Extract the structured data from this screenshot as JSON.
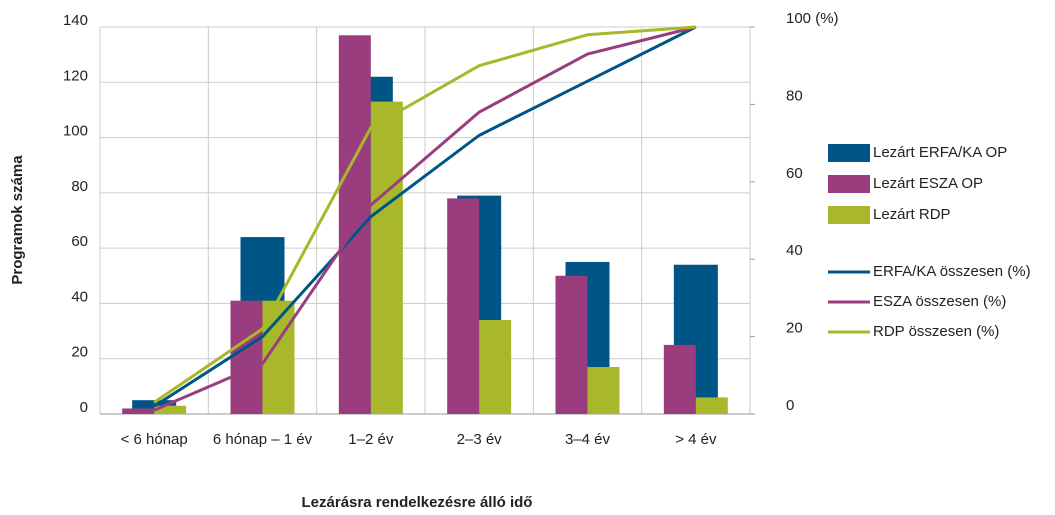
{
  "chart_data": {
    "type": "bar",
    "xlabel": "Lezárásra rendelkezésre álló idő",
    "ylabel": "Programok száma",
    "categories": [
      "< 6 hónap",
      "6 hónap – 1 év",
      "1–2 év",
      "2–3 év",
      "3–4 év",
      "> 4 év"
    ],
    "ylim": [
      0,
      140
    ],
    "yticks": [
      0,
      20,
      40,
      60,
      80,
      100,
      120,
      140
    ],
    "y2lim": [
      0,
      100
    ],
    "y2ticks": [
      0,
      20,
      40,
      60,
      80,
      {
        "value": 100,
        "label": "100 (%)"
      }
    ],
    "grid": true,
    "legend": "right",
    "series": [
      {
        "name": "Lezárt ERFA/KA OP",
        "color": "#005587",
        "type": "bar",
        "values": [
          5,
          64,
          122,
          79,
          55,
          54
        ]
      },
      {
        "name": "Lezárt ESZA OP",
        "color": "#993d7f",
        "type": "bar",
        "values": [
          2,
          41,
          137,
          78,
          50,
          25
        ]
      },
      {
        "name": "Lezárt RDP",
        "color": "#a8b82a",
        "type": "bar",
        "values": [
          3,
          41,
          113,
          34,
          17,
          6
        ]
      },
      {
        "name": "ERFA/KA összesen (%)",
        "color": "#005587",
        "type": "line",
        "axis": "y2",
        "values": [
          2,
          20,
          51,
          72,
          86,
          100
        ]
      },
      {
        "name": "ESZA összesen (%)",
        "color": "#993d7f",
        "type": "line",
        "axis": "y2",
        "values": [
          1,
          13,
          54,
          78,
          93,
          100
        ]
      },
      {
        "name": "RDP összesen (%)",
        "color": "#a8b82a",
        "type": "line",
        "axis": "y2",
        "values": [
          3,
          22,
          74,
          90,
          98,
          100
        ]
      }
    ]
  }
}
